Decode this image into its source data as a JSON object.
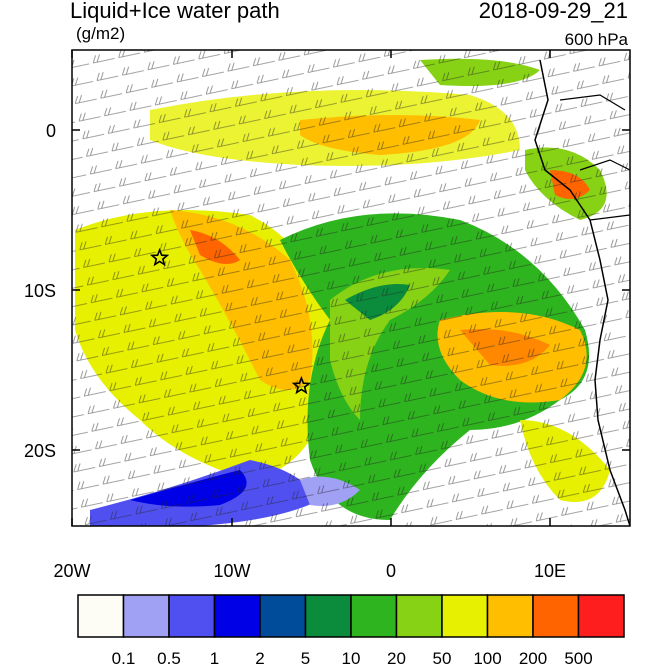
{
  "header": {
    "title": "Liquid+Ice water path",
    "units": "(g/m2)",
    "datetime": "2018-09-29_21",
    "level": "600 hPa"
  },
  "axes": {
    "x_ticks": [
      "20W",
      "10W",
      "0",
      "10E"
    ],
    "y_ticks": [
      "0",
      "10S",
      "20S"
    ],
    "lon_range": [
      -20,
      15
    ],
    "lat_range": [
      -24.5,
      5
    ]
  },
  "colorbar": {
    "labels": [
      "0.1",
      "0.5",
      "1",
      "2",
      "5",
      "10",
      "20",
      "50",
      "100",
      "200",
      "500"
    ],
    "colors": [
      "#fdfdf5",
      "#a0a0f5",
      "#5050f0",
      "#0000e6",
      "#004c9b",
      "#0a8c3c",
      "#2eb41e",
      "#87d214",
      "#e6f000",
      "#ffbe00",
      "#ff6400",
      "#ff1e1e"
    ]
  },
  "markers": [
    {
      "name": "star-1",
      "lon": -14.5,
      "lat": -8
    },
    {
      "name": "star-2",
      "lon": -5.6,
      "lat": -16
    }
  ]
}
